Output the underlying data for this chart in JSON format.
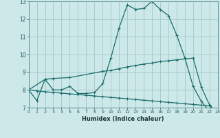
{
  "xlabel": "Humidex (Indice chaleur)",
  "bg_color": "#cce8e8",
  "grid_color": "#aacccc",
  "line_color": "#1a6b6b",
  "x_min": 0,
  "x_max": 23,
  "y_min": 7,
  "y_max": 13,
  "line1_x": [
    0,
    1,
    2,
    3,
    4,
    5,
    6,
    7,
    8,
    9,
    10,
    11,
    12,
    13,
    14,
    15,
    16,
    17,
    18,
    19,
    20,
    21,
    22,
    23
  ],
  "line1_y": [
    8.0,
    7.4,
    8.6,
    8.0,
    8.0,
    8.2,
    7.8,
    7.8,
    7.85,
    8.35,
    9.8,
    11.5,
    12.8,
    12.55,
    12.6,
    13.0,
    12.55,
    12.2,
    11.1,
    9.8,
    8.2,
    7.35,
    6.8,
    6.65
  ],
  "line2_x": [
    0,
    2,
    3,
    5,
    9,
    10,
    11,
    12,
    13,
    14,
    15,
    16,
    17,
    18,
    19,
    20,
    21,
    22,
    23
  ],
  "line2_y": [
    8.0,
    8.6,
    8.65,
    8.7,
    9.05,
    9.1,
    9.2,
    9.3,
    9.38,
    9.46,
    9.52,
    9.6,
    9.65,
    9.7,
    9.75,
    9.8,
    8.15,
    7.15,
    6.65
  ],
  "line3_x": [
    0,
    1,
    2,
    3,
    4,
    5,
    6,
    7,
    8,
    9,
    10,
    11,
    12,
    13,
    14,
    15,
    16,
    17,
    18,
    19,
    20,
    21,
    22,
    23
  ],
  "line3_y": [
    8.0,
    7.95,
    7.9,
    7.86,
    7.82,
    7.78,
    7.74,
    7.7,
    7.66,
    7.62,
    7.58,
    7.54,
    7.5,
    7.46,
    7.42,
    7.38,
    7.34,
    7.3,
    7.26,
    7.22,
    7.18,
    7.14,
    7.1,
    6.72
  ]
}
